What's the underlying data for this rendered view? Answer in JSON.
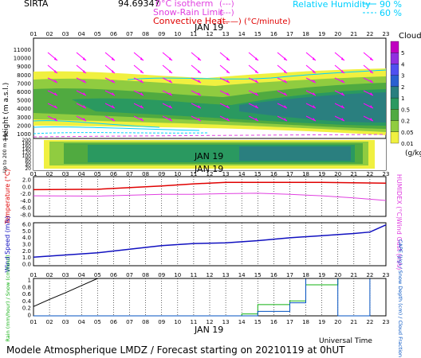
{
  "header": {
    "station": "SIRTA",
    "station_code": "94.69347",
    "legend_isotherm": "0°C isotherm",
    "legend_isotherm_style": "(---)",
    "legend_snowrain": "Snow-Rain Limit",
    "legend_snowrain_style": "(---)",
    "legend_convective": "Convective Heat.",
    "legend_convective_style": "(——) (°C/minute)",
    "legend_rh": "Relative Humidity",
    "legend_rh_90": "90 %",
    "legend_rh_60": "60 %"
  },
  "hours": [
    "01",
    "02",
    "03",
    "04",
    "05",
    "06",
    "07",
    "08",
    "09",
    "10",
    "11",
    "12",
    "13",
    "14",
    "15",
    "16",
    "17",
    "18",
    "19",
    "20",
    "21",
    "22",
    "23"
  ],
  "date_label": "JAN 19",
  "footer": {
    "universal_time": "Universal Time",
    "model_caption": "Modele Atmospherique LMDZ / Forecast starting on 20210119 at 0hUT"
  },
  "colors": {
    "temperature": "#e00000",
    "humidex": "#e040e0",
    "wind_speed": "#1010c0",
    "rain": "#10b010",
    "snow": "#1060d0",
    "cape": "#000000",
    "cloud_fraction": "#0050c0",
    "wind_barb": "#ff00ff",
    "rh_contour": "#00d0ff"
  },
  "cloud_panel": {
    "title": "Clouds",
    "unit": "(g/kg)",
    "ylabel": "Height (m a.s.l.)",
    "lower_ylabel": "Up to 200 m a.g.l.",
    "upper_yticks": [
      "11000",
      "10000",
      "9000",
      "8000",
      "7000",
      "6000",
      "5000",
      "4000",
      "3000",
      "2000",
      "1000"
    ],
    "lower_yticks": [
      "200",
      "180",
      "160",
      "140",
      "120",
      "100",
      "80",
      "60",
      "40",
      "20"
    ],
    "colorbar": [
      {
        "label": "5",
        "color": "#c000c0"
      },
      {
        "label": "4",
        "color": "#9030e0"
      },
      {
        "label": "3",
        "color": "#5050f0"
      },
      {
        "label": "2",
        "color": "#2a60d0"
      },
      {
        "label": "1",
        "color": "#2a7f7f"
      },
      {
        "label": "0.5",
        "color": "#2a9960"
      },
      {
        "label": "0.2",
        "color": "#50aa40"
      },
      {
        "label": "0.05",
        "color": "#90cc40"
      },
      {
        "label": "0.01",
        "color": "#f0f040"
      }
    ]
  },
  "chart_data": [
    {
      "type": "line",
      "name": "temperature_humidex",
      "ylabel_left": "Temperature (°C)",
      "ylabel_right": "HUMIDEX (°C)",
      "x": [
        "01",
        "05",
        "09",
        "11",
        "13",
        "15",
        "17",
        "19",
        "21",
        "23"
      ],
      "yticks": [
        "2.0",
        "0.0",
        "-2.0",
        "-4.0",
        "-6.0",
        "-8.0"
      ],
      "ylim": [
        -9.0,
        2.0
      ],
      "series": [
        {
          "name": "Temperature",
          "values": [
            -1.6,
            -1.5,
            -0.6,
            0.0,
            0.4,
            0.4,
            0.4,
            0.4,
            0.3,
            0.2
          ]
        },
        {
          "name": "Humidex",
          "values": [
            -3.3,
            -3.4,
            -2.9,
            -2.9,
            -2.7,
            -2.6,
            -2.9,
            -3.3,
            -3.9,
            -4.6
          ]
        }
      ]
    },
    {
      "type": "line",
      "name": "wind",
      "ylabel_left": "Wind Speed (m/s)",
      "ylabel_right": "Wind Gust (m/s)",
      "x": [
        "01",
        "03",
        "05",
        "07",
        "09",
        "11",
        "13",
        "15",
        "17",
        "19",
        "21",
        "22",
        "23"
      ],
      "yticks": [
        "6.0",
        "5.0",
        "4.0",
        "3.0",
        "2.0",
        "1.0",
        "0.0"
      ],
      "ylim": [
        0,
        6.0
      ],
      "series": [
        {
          "name": "Wind Speed",
          "values": [
            1.2,
            1.5,
            1.8,
            2.3,
            2.8,
            3.1,
            3.2,
            3.5,
            3.9,
            4.2,
            4.5,
            4.7,
            5.7
          ]
        }
      ]
    },
    {
      "type": "line",
      "name": "precipitation",
      "ylabel_left": "Rain (mm/hour) / Snow (cm/hour)",
      "ylabel_right": "CAPE (J/g) / Snow Depth (cm) / Cloud Fraction",
      "x": [
        "01",
        "02",
        "03",
        "04",
        "05",
        "06",
        "07",
        "08",
        "09",
        "10",
        "11",
        "12",
        "13",
        "14",
        "15",
        "16",
        "17",
        "18",
        "19",
        "20",
        "21",
        "22",
        "23"
      ],
      "yticks": [
        "1",
        "0.8",
        "0.6",
        "0.4",
        "0.2",
        "0"
      ],
      "ylim": [
        0,
        1
      ],
      "series": [
        {
          "name": "CAPE",
          "values": [
            0.25,
            0.44,
            0.62,
            0.81,
            1.0,
            1.0,
            1.0,
            1.0,
            1.0,
            1.0,
            1.0,
            1.0,
            1.0,
            1.0,
            1.0,
            1.0,
            1.0,
            1.0,
            1.0,
            1.0,
            1.0,
            1.0,
            1.0
          ]
        },
        {
          "name": "Cloud Fraction",
          "values": [
            0,
            0,
            0,
            0,
            0,
            0,
            0,
            0,
            0,
            0,
            0,
            0,
            0,
            0,
            0.12,
            0.12,
            0.35,
            1.0,
            1.0,
            0,
            0,
            1.0,
            1.0
          ]
        },
        {
          "name": "Rain",
          "values": [
            0,
            0,
            0,
            0,
            0,
            0,
            0,
            0,
            0,
            0,
            0,
            0,
            0,
            0.05,
            0.3,
            0.3,
            0.4,
            0.83,
            0.83,
            1.0,
            1.0,
            1.0,
            1.0
          ]
        }
      ]
    }
  ]
}
